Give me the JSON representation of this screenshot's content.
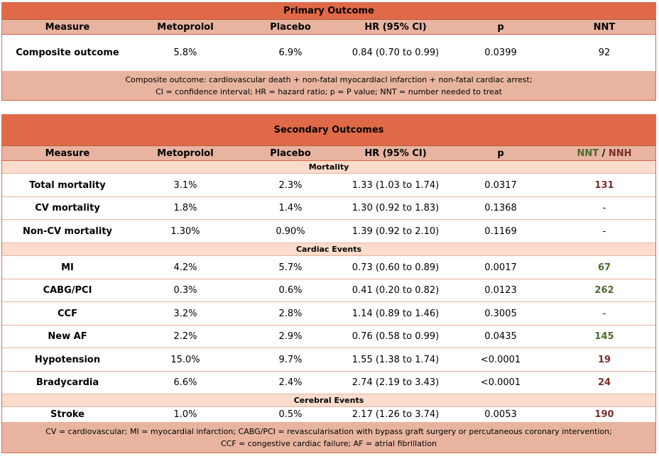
{
  "primary": {
    "title": "Primary Outcome",
    "headers": [
      "Measure",
      "Metoprolol",
      "Placebo",
      "HR (95% CI)",
      "p",
      "NNT"
    ],
    "row": {
      "measure": "Composite outcome",
      "metoprolol": "5.8%",
      "placebo": "6.9%",
      "hr": "0.84 (0.70 to 0.99)",
      "p": "0.0399",
      "nnt": "92"
    },
    "footnote_line1": "Composite outcome: cardiovascular death + non-fatal myocardiacl infarction + non-fatal cardiac arrest;",
    "footnote_line2": "CI = confidence interval; HR = hazard ratio; p = P value; NNT = number needed to treat"
  },
  "secondary": {
    "title": "Secondary Outcomes",
    "headers": [
      "Measure",
      "Metoprolol",
      "Placebo",
      "HR (95% CI)",
      "p"
    ],
    "nnt_label": "NNT",
    "slash": " / ",
    "nnh_label": "NNH",
    "groups": [
      {
        "label": "Mortality",
        "rows": [
          {
            "measure": "Total mortality",
            "metoprolol": "3.1%",
            "placebo": "2.3%",
            "hr": "1.33 (1.03 to 1.74)",
            "p": "0.0317",
            "n": "131",
            "kind": "nnh"
          },
          {
            "measure": "CV mortality",
            "metoprolol": "1.8%",
            "placebo": "1.4%",
            "hr": "1.30 (0.92 to 1.83)",
            "p": "0.1368",
            "n": "-",
            "kind": "none"
          },
          {
            "measure": "Non-CV mortality",
            "metoprolol": "1.30%",
            "placebo": "0.90%",
            "hr": "1.39 (0.92 to 2.10)",
            "p": "0.1169",
            "n": "-",
            "kind": "none"
          }
        ]
      },
      {
        "label": "Cardiac Events",
        "rows": [
          {
            "measure": "MI",
            "metoprolol": "4.2%",
            "placebo": "5.7%",
            "hr": "0.73 (0.60 to 0.89)",
            "p": "0.0017",
            "n": "67",
            "kind": "nnt"
          },
          {
            "measure": "CABG/PCI",
            "metoprolol": "0.3%",
            "placebo": "0.6%",
            "hr": "0.41 (0.20 to 0.82)",
            "p": "0.0123",
            "n": "262",
            "kind": "nnt"
          },
          {
            "measure": "CCF",
            "metoprolol": "3.2%",
            "placebo": "2.8%",
            "hr": "1.14 (0.89 to 1.46)",
            "p": "0.3005",
            "n": "-",
            "kind": "none"
          },
          {
            "measure": "New AF",
            "metoprolol": "2.2%",
            "placebo": "2.9%",
            "hr": "0.76 (0.58 to 0.99)",
            "p": "0.0435",
            "n": "145",
            "kind": "nnt"
          },
          {
            "measure": "Hypotension",
            "metoprolol": "15.0%",
            "placebo": "9.7%",
            "hr": "1.55 (1.38 to 1.74)",
            "p": "<0.0001",
            "n": "19",
            "kind": "nnh"
          },
          {
            "measure": "Bradycardia",
            "metoprolol": "6.6%",
            "placebo": "2.4%",
            "hr": "2.74 (2.19 to 3.43)",
            "p": "<0.0001",
            "n": "24",
            "kind": "nnh"
          }
        ]
      },
      {
        "label": "Cerebral Events",
        "rows": [
          {
            "measure": "Stroke",
            "metoprolol": "1.0%",
            "placebo": "0.5%",
            "hr": "2.17 (1.26 to 3.74)",
            "p": "0.0053",
            "n": "190",
            "kind": "nnh"
          }
        ]
      }
    ],
    "footnote_line1": "CV = cardiovascular; MI = myocardial infarction; CABG/PCI = revascularisation with bypass graft surgery or percutaneous coronary intervention;",
    "footnote_line2": "CCF = congestive cardiac failure; AF = atrial fibrillation"
  },
  "colors": {
    "title": "#e06a48",
    "header": "#e8b4a0",
    "group": "#fbdccd",
    "nnt": "#4d6a2e",
    "nnh": "#7a2e2a"
  }
}
